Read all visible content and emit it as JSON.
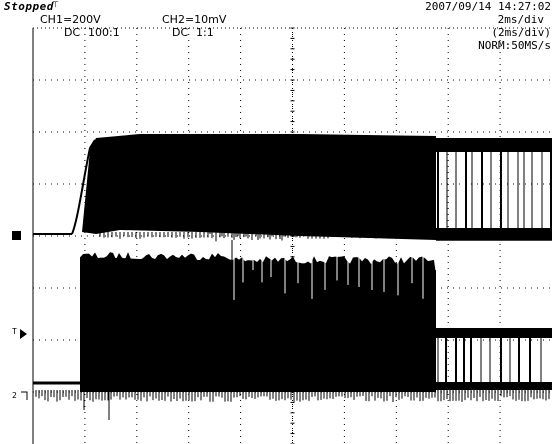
{
  "status": "Stopped",
  "datetime": "2007/09/14  14:27:02",
  "ch1": {
    "label": "CH1=200V",
    "coupling": "DC",
    "probe": "100:1"
  },
  "ch2": {
    "label": "CH2=10mV",
    "coupling": "DC",
    "probe": "1:1"
  },
  "timebase": {
    "main": "2ms/div",
    "zoom": "(2ms/div)",
    "mode": "NORM:50MS/s"
  },
  "markers": {
    "ch1": "1",
    "ch2": "2",
    "trigger": "T"
  },
  "colors": {
    "trace": "#000000",
    "grid": "#000000",
    "background": "#ffffff"
  }
}
